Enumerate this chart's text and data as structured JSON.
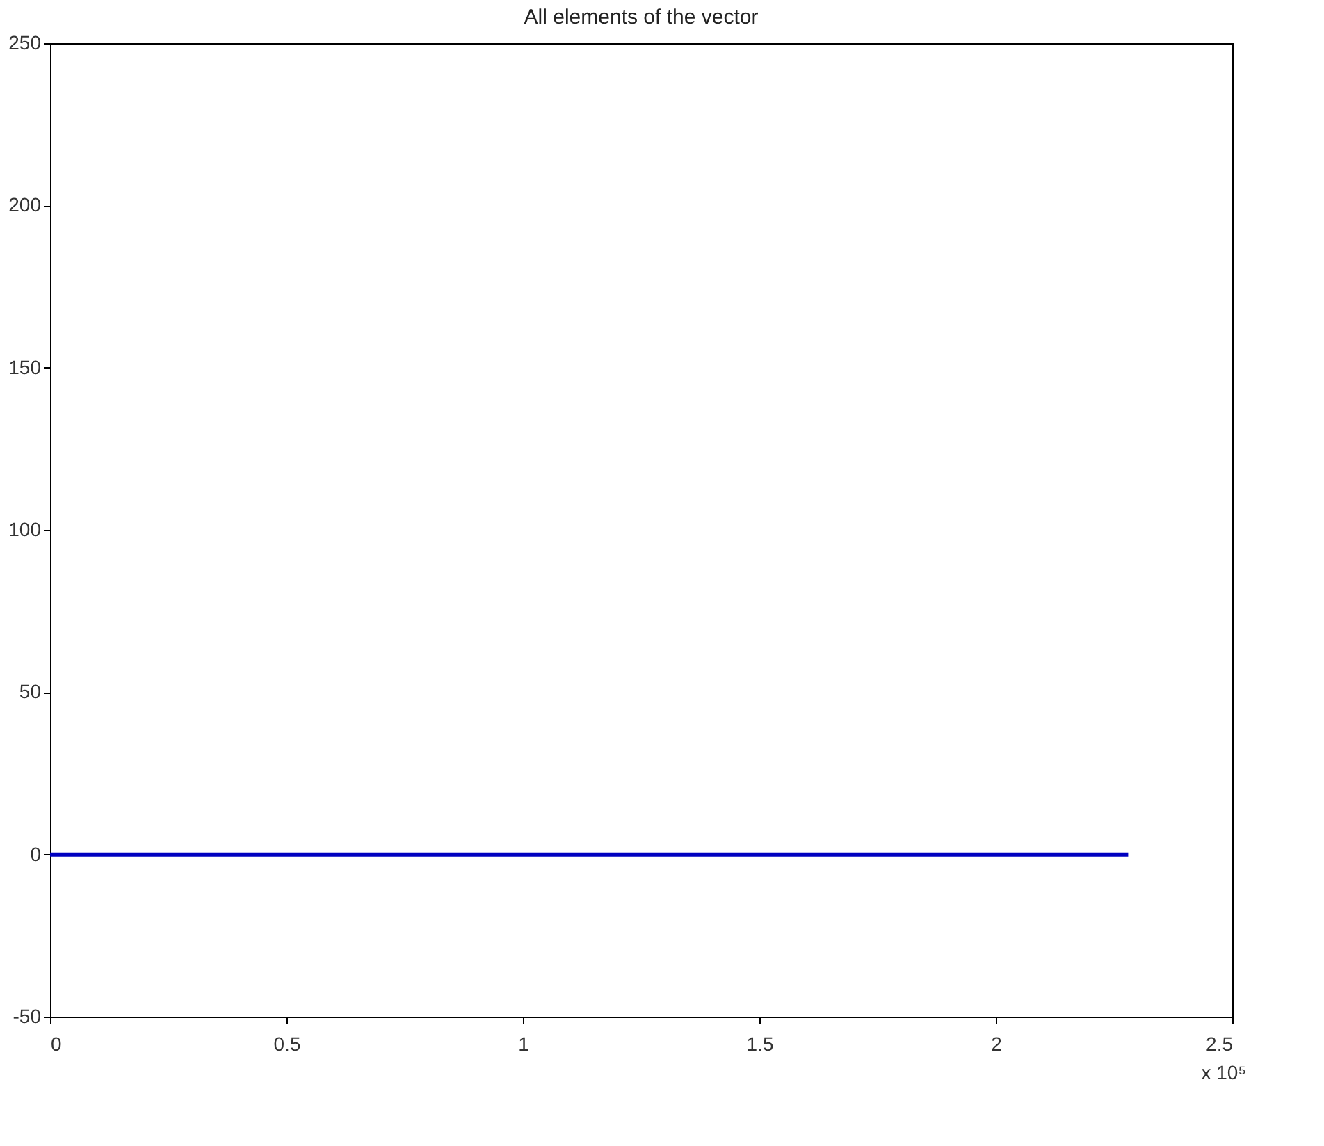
{
  "chart_data": {
    "type": "line",
    "title": "All elements of the vector",
    "x": [
      0,
      2.28
    ],
    "series": [
      {
        "color": "#0000c0",
        "values": [
          0,
          0
        ]
      }
    ],
    "xlim": [
      0,
      2.5
    ],
    "xticks": [
      0,
      0.5,
      1,
      1.5,
      2,
      2.5
    ],
    "ylim": [
      -50,
      250
    ],
    "yticks": [
      -50,
      0,
      50,
      100,
      150,
      200,
      250
    ],
    "grid": false,
    "legend": false,
    "marker": "none",
    "line_style": "solid",
    "annotations": [
      "x 10⁵"
    ]
  }
}
